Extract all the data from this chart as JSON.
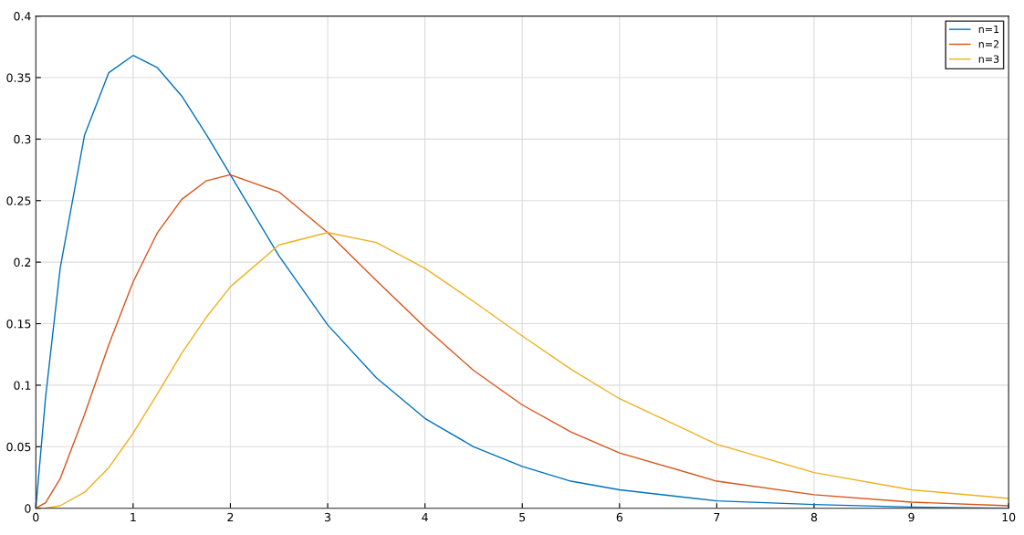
{
  "chart_data": {
    "type": "line",
    "x": [
      0,
      0.1,
      0.25,
      0.5,
      0.75,
      1,
      1.25,
      1.5,
      1.75,
      2,
      2.5,
      3,
      3.5,
      4,
      4.5,
      5,
      5.5,
      6,
      7,
      8,
      9,
      10
    ],
    "series": [
      {
        "name": "n=1",
        "color": "#0072bd",
        "values": [
          0,
          0.09,
          0.195,
          0.303,
          0.354,
          0.368,
          0.358,
          0.335,
          0.304,
          0.271,
          0.205,
          0.149,
          0.106,
          0.073,
          0.05,
          0.034,
          0.022,
          0.015,
          0.006,
          0.003,
          0.001,
          0.0
        ]
      },
      {
        "name": "n=2",
        "color": "#d95319",
        "values": [
          0,
          0.0045,
          0.024,
          0.076,
          0.133,
          0.184,
          0.224,
          0.251,
          0.266,
          0.271,
          0.257,
          0.224,
          0.185,
          0.147,
          0.112,
          0.084,
          0.062,
          0.045,
          0.022,
          0.011,
          0.005,
          0.002
        ]
      },
      {
        "name": "n=3",
        "color": "#edb120",
        "values": [
          0,
          0.0002,
          0.002,
          0.013,
          0.033,
          0.061,
          0.093,
          0.126,
          0.155,
          0.18,
          0.214,
          0.224,
          0.216,
          0.195,
          0.168,
          0.14,
          0.113,
          0.089,
          0.052,
          0.029,
          0.015,
          0.008
        ]
      }
    ],
    "xlim": [
      0,
      10
    ],
    "xticks": [
      0,
      1,
      2,
      3,
      4,
      5,
      6,
      7,
      8,
      9,
      10
    ],
    "ylim": [
      0,
      0.4
    ],
    "yticks": [
      0,
      0.05,
      0.1,
      0.15,
      0.2,
      0.25,
      0.3,
      0.35,
      0.4
    ],
    "grid": true,
    "legend": "top right",
    "marker": "none",
    "line_style": "solid"
  }
}
